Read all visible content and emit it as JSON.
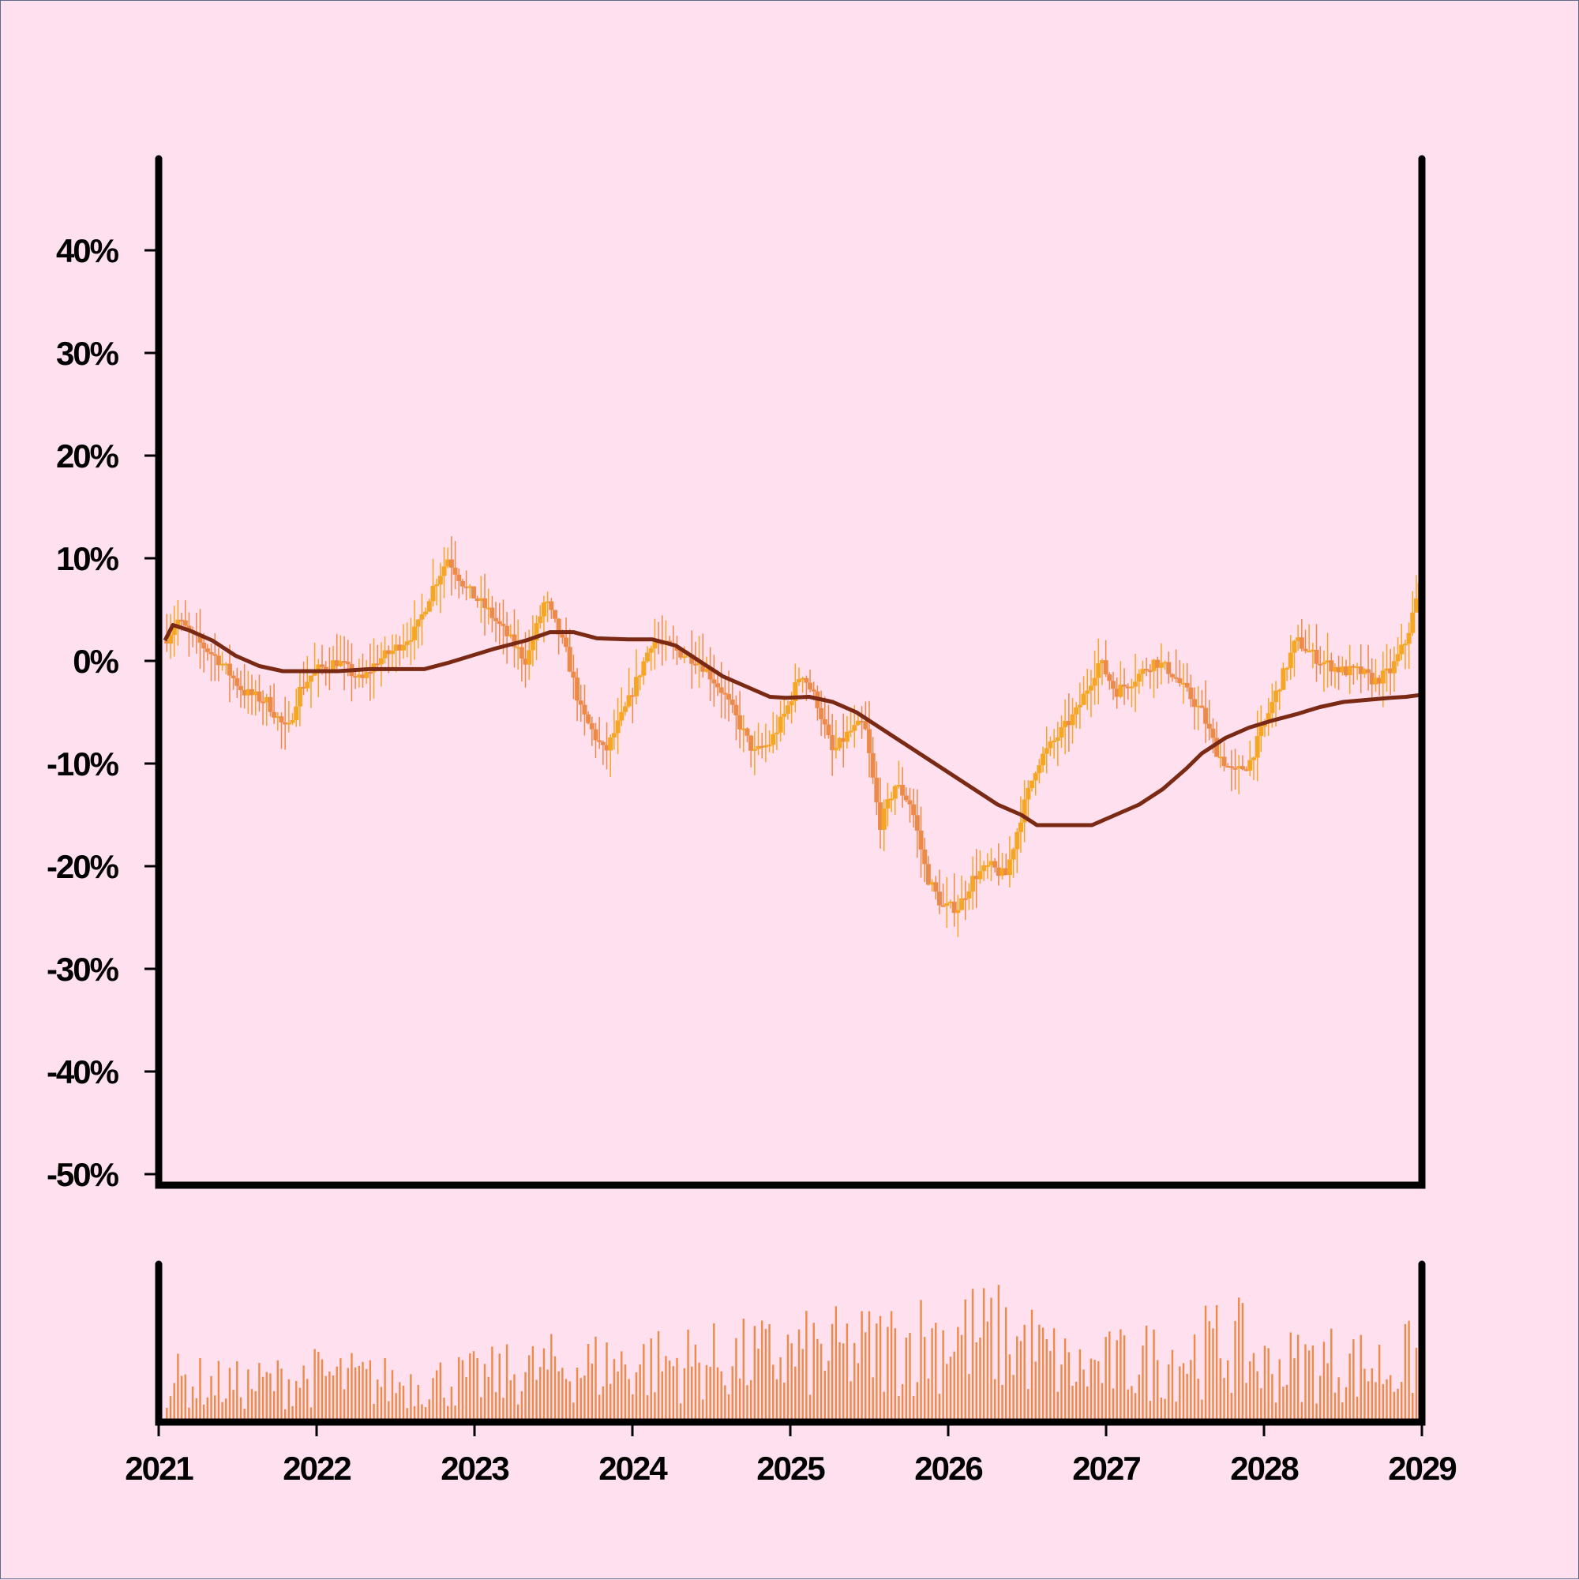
{
  "chart_data": {
    "type": "candlestick",
    "title": "",
    "xlabel": "",
    "ylabel": "",
    "y_ticks": [
      40,
      30,
      20,
      10,
      0,
      -10,
      -20,
      -30,
      -40,
      -50
    ],
    "y_tick_labels": [
      "40%",
      "30%",
      "20%",
      "10%",
      "0%",
      "-10%",
      "-20%",
      "-30%",
      "-40%",
      "-50%"
    ],
    "ylim": [
      -50,
      48
    ],
    "x_ticks": [
      2021,
      2022,
      2023,
      2024,
      2025,
      2026,
      2027,
      2028,
      2029
    ],
    "x_tick_labels": [
      "2021",
      "2022",
      "2023",
      "2024",
      "2025",
      "2026",
      "2027",
      "2028",
      "2029"
    ],
    "xlim": [
      2021,
      2029
    ],
    "grid": false,
    "legend": "none",
    "colors": {
      "background": "#ffe0ee",
      "candle_up": "#f5a623",
      "candle_down": "#ec8a4a",
      "moving_average": "#7a2a14",
      "volume": "#ec8a4a",
      "axis": "#000000"
    },
    "price_path": {
      "x": [
        2021.0,
        2021.08,
        2021.2,
        2021.35,
        2021.5,
        2021.65,
        2021.78,
        2021.85,
        2021.95,
        2022.1,
        2022.25,
        2022.35,
        2022.45,
        2022.6,
        2022.7,
        2022.8,
        2022.92,
        2023.05,
        2023.2,
        2023.3,
        2023.42,
        2023.55,
        2023.65,
        2023.8,
        2023.95,
        2024.1,
        2024.25,
        2024.4,
        2024.55,
        2024.65,
        2024.75,
        2024.85,
        2024.95,
        2025.05,
        2025.15,
        2025.25,
        2025.35,
        2025.45,
        2025.55,
        2025.65,
        2025.75,
        2025.85,
        2025.95,
        2026.05,
        2026.15,
        2026.25,
        2026.35,
        2026.45,
        2026.55,
        2026.65,
        2026.8,
        2026.95,
        2027.05,
        2027.15,
        2027.3,
        2027.4,
        2027.5,
        2027.6,
        2027.7,
        2027.8,
        2027.9,
        2028.0,
        2028.1,
        2028.2,
        2028.35,
        2028.5,
        2028.6,
        2028.7,
        2028.8,
        2028.9,
        2029.0
      ],
      "y": [
        2,
        4,
        2,
        0,
        -3,
        -4,
        -7,
        -3,
        -1,
        0,
        -2,
        0,
        1,
        3,
        7,
        10,
        7,
        5,
        2,
        0,
        6,
        1,
        -5,
        -9,
        -4,
        2,
        1,
        0,
        -3,
        -6,
        -9,
        -8,
        -5,
        -1,
        -4,
        -9,
        -7,
        -6,
        -16,
        -12,
        -14,
        -21,
        -24,
        -24,
        -21,
        -20,
        -21,
        -15,
        -10,
        -8,
        -5,
        0,
        -3,
        -2,
        0,
        -1,
        -3,
        -5,
        -9,
        -11,
        -10,
        -6,
        -2,
        2,
        0,
        -1,
        -1,
        -2,
        -1,
        2,
        8
      ]
    },
    "moving_average": {
      "name": "",
      "x": [
        2021.0,
        2021.05,
        2021.15,
        2021.3,
        2021.45,
        2021.6,
        2021.75,
        2021.9,
        2022.1,
        2022.3,
        2022.5,
        2022.65,
        2022.8,
        2022.95,
        2023.1,
        2023.3,
        2023.45,
        2023.6,
        2023.75,
        2023.95,
        2024.1,
        2024.25,
        2024.4,
        2024.55,
        2024.7,
        2024.85,
        2024.95,
        2025.1,
        2025.25,
        2025.4,
        2025.55,
        2025.7,
        2025.85,
        2026.0,
        2026.15,
        2026.3,
        2026.45,
        2026.55,
        2026.7,
        2026.9,
        2027.05,
        2027.2,
        2027.35,
        2027.5,
        2027.6,
        2027.75,
        2027.9,
        2028.05,
        2028.2,
        2028.35,
        2028.5,
        2028.65,
        2028.8,
        2028.9,
        2028.95,
        2029.0
      ],
      "y": [
        2,
        3.5,
        3,
        2,
        0.5,
        -0.5,
        -1,
        -1,
        -1,
        -0.8,
        -0.8,
        -0.8,
        -0.2,
        0.5,
        1.2,
        2,
        2.8,
        2.8,
        2.2,
        2.1,
        2.1,
        1.5,
        0,
        -1.5,
        -2.5,
        -3.5,
        -3.6,
        -3.5,
        -4,
        -5,
        -6.5,
        -8,
        -9.5,
        -11,
        -12.5,
        -14,
        -15,
        -16,
        -16,
        -16,
        -15,
        -14,
        -12.5,
        -10.5,
        -9,
        -7.5,
        -6.5,
        -5.8,
        -5.2,
        -4.5,
        -4,
        -3.8,
        -3.6,
        -3.5,
        -3.4,
        -3.3
      ]
    },
    "volume": {
      "relative_max": 1.0,
      "envelope_x": [
        2021.0,
        2021.5,
        2022.0,
        2022.5,
        2023.0,
        2023.5,
        2024.0,
        2024.5,
        2025.0,
        2025.5,
        2026.0,
        2026.3,
        2026.5,
        2026.8,
        2027.2,
        2027.5,
        2027.8,
        2028.0,
        2028.4,
        2028.8,
        2029.0
      ],
      "envelope_y": [
        0.35,
        0.3,
        0.38,
        0.32,
        0.36,
        0.45,
        0.48,
        0.5,
        0.55,
        0.6,
        0.72,
        0.7,
        0.62,
        0.42,
        0.5,
        0.55,
        0.65,
        0.45,
        0.5,
        0.45,
        0.55
      ]
    }
  }
}
